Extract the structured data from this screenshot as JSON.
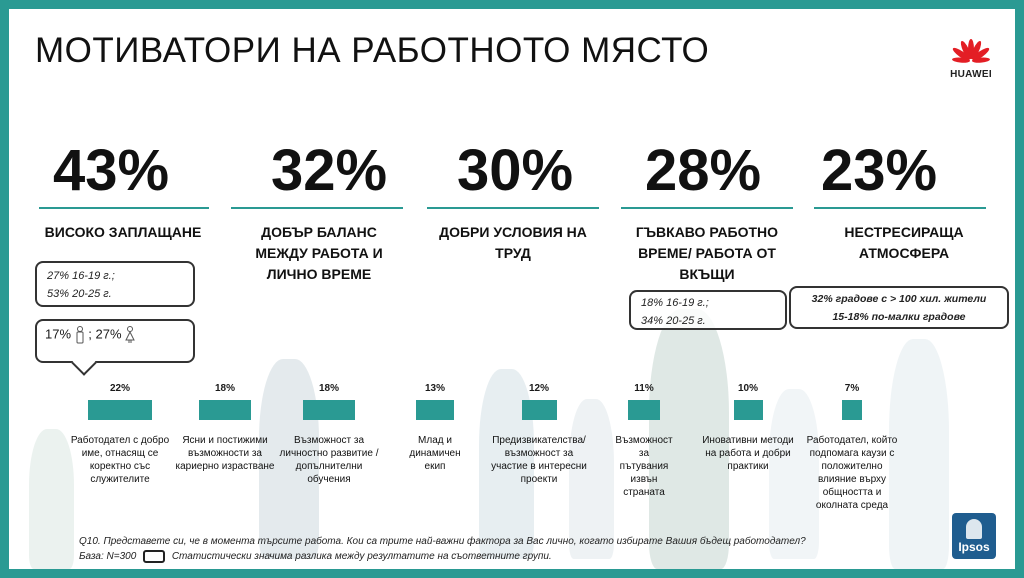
{
  "title": "МОТИВАТОРИ НА РАБОТНОТО МЯСТО",
  "logo": {
    "text": "HUAWEI",
    "brand_color": "#e31e25"
  },
  "brand_logo": "Ipsos",
  "accent_color": "#2a9a93",
  "headline_stats": [
    {
      "value": "43%",
      "label": "ВИСОКО ЗАПЛАЩАНЕ"
    },
    {
      "value": "32%",
      "label": "ДОБЪР БАЛАНС МЕЖДУ РАБОТА И ЛИЧНО ВРЕМЕ"
    },
    {
      "value": "30%",
      "label": "ДОБРИ УСЛОВИЯ НА ТРУД"
    },
    {
      "value": "28%",
      "label": "ГЪВКАВО РАБОТНО ВРЕМЕ/ РАБОТА ОТ ВКЪЩИ"
    },
    {
      "value": "23%",
      "label": "НЕСТРЕСИРАЩА АТМОСФЕРА"
    }
  ],
  "notes": {
    "pay_age": [
      "27% 16-19 г.;",
      "53% 20-25 г."
    ],
    "pay_gender": {
      "male": "17%",
      "sep": ";",
      "female": "27%"
    },
    "flex_age": [
      "18% 16-19 г.;",
      "34% 20-25 г."
    ],
    "atmo_city": [
      "32% градове с  > 100 хил. жители",
      "15-18% по-малки градове"
    ]
  },
  "chart_data": {
    "type": "bar",
    "categories": [
      "Работодател с добро име, отнасящ се коректно със служителите",
      "Ясни и постижими възможности за кариерно израстване",
      "Възможност за личностно развитие / допълнителни обучения",
      "Млад и динамичен екип",
      "Предизвикателства/ възможност за участие в интересни проекти",
      "Възможност за пътувания извън страната",
      "Иновативни методи на работа и добри практики",
      "Работодател, който подпомага каузи с положително влияние върху общността и околната среда"
    ],
    "values": [
      22,
      18,
      18,
      13,
      12,
      11,
      10,
      7
    ],
    "value_labels": [
      "22%",
      "18%",
      "18%",
      "13%",
      "12%",
      "11%",
      "10%",
      "7%"
    ],
    "bar_color": "#2a9a93"
  },
  "footer": {
    "question": "Q10. Представете си, че в момента търсите работа. Кои са трите най-важни фактора за Вас лично, когато избирате Вашия бъдещ работодател?",
    "base": "База: N=300",
    "legend_note": "Статистически значима разлика между резултатите на съответните групи."
  }
}
